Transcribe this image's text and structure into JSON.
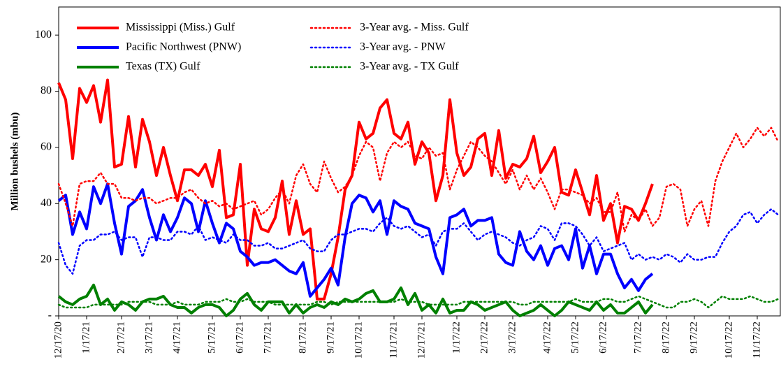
{
  "chart_data": {
    "type": "line",
    "y_label": "Million bushels (mbu)",
    "categories": [
      "12/17/20",
      null,
      null,
      null,
      "1/17/21",
      null,
      null,
      null,
      null,
      "2/17/21",
      null,
      null,
      null,
      "3/17/21",
      null,
      null,
      null,
      "4/17/21",
      null,
      null,
      null,
      null,
      "5/17/21",
      null,
      null,
      null,
      "6/17/21",
      null,
      null,
      null,
      "7/17/21",
      null,
      null,
      null,
      null,
      "8/17/21",
      null,
      null,
      null,
      "9/17/21",
      null,
      null,
      null,
      "10/17/21",
      null,
      null,
      null,
      null,
      "11/17/21",
      null,
      null,
      null,
      "12/17/21",
      null,
      null,
      null,
      null,
      "1/17/22",
      null,
      null,
      null,
      "2/17/22",
      null,
      null,
      null,
      "3/17/22",
      null,
      null,
      null,
      null,
      "4/17/22",
      null,
      null,
      null,
      "5/17/22",
      null,
      null,
      null,
      "6/17/22",
      null,
      null,
      null,
      null,
      "7/17/22",
      null,
      null,
      null,
      "8/17/22",
      null,
      null,
      null,
      "9/17/22",
      null,
      null,
      null,
      null,
      "10/17/22",
      null,
      null,
      null,
      "11/17/22",
      null,
      null,
      null
    ],
    "series": [
      {
        "name": "Mississippi (Miss.) Gulf",
        "color": "#ff0000",
        "style": "solid",
        "values": [
          83,
          77,
          56,
          81,
          76,
          82,
          69,
          84,
          53,
          54,
          71,
          53,
          70,
          62,
          50,
          60,
          50,
          41,
          52,
          52,
          50,
          54,
          46,
          59,
          35,
          36,
          54,
          18,
          38,
          31,
          30,
          35,
          48,
          29,
          41,
          29,
          31,
          6,
          6,
          15,
          28,
          45,
          50,
          69,
          63,
          65,
          74,
          77,
          65,
          63,
          69,
          54,
          62,
          58,
          41,
          50,
          77,
          58,
          50,
          53,
          63,
          65,
          50,
          66,
          49,
          54,
          53,
          56,
          64,
          51,
          55,
          60,
          44,
          43,
          52,
          44,
          36,
          50,
          34,
          40,
          26,
          39,
          38,
          34,
          40,
          47,
          null,
          null,
          null,
          null,
          null,
          null,
          null,
          null,
          null,
          null,
          null,
          null,
          null,
          null,
          null,
          null,
          null,
          null
        ]
      },
      {
        "name": "Pacific Northwest (PNW)",
        "color": "#0000ff",
        "style": "solid",
        "values": [
          41,
          43,
          29,
          37,
          31,
          46,
          40,
          47,
          33,
          22,
          39,
          41,
          45,
          35,
          27,
          36,
          30,
          35,
          42,
          40,
          30,
          41,
          33,
          26,
          33,
          31,
          23,
          21,
          18,
          19,
          19,
          20,
          18,
          16,
          15,
          19,
          7,
          10,
          13,
          17,
          11,
          28,
          40,
          43,
          42,
          37,
          41,
          29,
          41,
          39,
          38,
          33,
          32,
          31,
          21,
          15,
          35,
          36,
          38,
          32,
          34,
          34,
          35,
          22,
          19,
          18,
          30,
          23,
          20,
          25,
          18,
          24,
          25,
          20,
          31,
          17,
          25,
          15,
          22,
          22,
          15,
          10,
          13,
          9,
          13,
          15,
          null,
          null,
          null,
          null,
          null,
          null,
          null,
          null,
          null,
          null,
          null,
          null,
          null,
          null,
          null,
          null,
          null,
          null
        ]
      },
      {
        "name": "Texas (TX) Gulf",
        "color": "#008000",
        "style": "solid",
        "values": [
          7,
          5,
          4,
          6,
          7,
          11,
          4,
          6,
          2,
          5,
          4,
          2,
          5,
          6,
          6,
          7,
          4,
          3,
          3,
          1,
          3,
          4,
          4,
          3,
          0,
          2,
          6,
          8,
          4,
          2,
          5,
          5,
          5,
          1,
          4,
          1,
          3,
          4,
          3,
          5,
          4,
          6,
          5,
          6,
          8,
          9,
          5,
          5,
          6,
          10,
          4,
          8,
          2,
          4,
          1,
          6,
          1,
          2,
          2,
          5,
          4,
          2,
          3,
          4,
          5,
          2,
          0,
          1,
          2,
          4,
          2,
          0,
          2,
          5,
          4,
          3,
          2,
          5,
          2,
          4,
          1,
          1,
          3,
          5,
          1,
          4,
          null,
          null,
          null,
          null,
          null,
          null,
          null,
          null,
          null,
          null,
          null,
          null,
          null,
          null,
          null,
          null,
          null,
          null
        ]
      },
      {
        "name": "3-Year avg. - Miss. Gulf",
        "color": "#ff0000",
        "style": "dotted",
        "values": [
          47,
          40,
          32,
          47,
          48,
          48,
          51,
          47,
          47,
          42,
          42,
          41,
          42,
          42,
          40,
          41,
          42,
          42,
          44,
          45,
          42,
          40,
          41,
          39,
          40,
          38,
          39,
          40,
          41,
          36,
          38,
          42,
          45,
          40,
          50,
          54,
          47,
          44,
          55,
          49,
          44,
          46,
          50,
          57,
          62,
          60,
          48,
          58,
          62,
          60,
          62,
          57,
          56,
          60,
          57,
          58,
          45,
          52,
          57,
          62,
          60,
          57,
          55,
          51,
          47,
          52,
          45,
          50,
          45,
          49,
          44,
          38,
          45,
          45,
          44,
          43,
          40,
          42,
          37,
          37,
          44,
          30,
          36,
          34,
          38,
          32,
          35,
          46,
          47,
          45,
          32,
          38,
          41,
          32,
          48,
          55,
          60,
          65,
          60,
          63,
          67,
          64,
          67,
          62
        ]
      },
      {
        "name": "3-Year avg. - PNW",
        "color": "#0000ff",
        "style": "dotted",
        "values": [
          26,
          18,
          15,
          25,
          27,
          27,
          29,
          29,
          30,
          27,
          28,
          28,
          21,
          28,
          28,
          27,
          27,
          30,
          30,
          29,
          32,
          27,
          28,
          27,
          26,
          29,
          27,
          27,
          25,
          25,
          26,
          24,
          24,
          25,
          26,
          27,
          24,
          23,
          23,
          27,
          29,
          29,
          30,
          31,
          31,
          30,
          33,
          35,
          32,
          31,
          32,
          30,
          28,
          29,
          25,
          30,
          31,
          31,
          33,
          30,
          27,
          29,
          30,
          29,
          28,
          26,
          25,
          27,
          28,
          32,
          31,
          27,
          33,
          33,
          32,
          29,
          25,
          28,
          23,
          24,
          25,
          26,
          20,
          22,
          20,
          21,
          20,
          22,
          21,
          19,
          22,
          20,
          20,
          21,
          21,
          26,
          30,
          32,
          36,
          37,
          33,
          36,
          38,
          36
        ]
      },
      {
        "name": "3-Year avg. - TX Gulf",
        "color": "#008000",
        "style": "dotted",
        "values": [
          4,
          3,
          3,
          3,
          3,
          4,
          4,
          4,
          4,
          4,
          5,
          5,
          5,
          5,
          4,
          4,
          4,
          5,
          4,
          4,
          4,
          5,
          5,
          5,
          6,
          5,
          5,
          6,
          5,
          5,
          5,
          4,
          4,
          4,
          4,
          4,
          4,
          5,
          5,
          4,
          5,
          5,
          5,
          5,
          5,
          5,
          5,
          5,
          5,
          6,
          5,
          5,
          5,
          4,
          4,
          4,
          4,
          4,
          5,
          5,
          5,
          5,
          5,
          5,
          5,
          5,
          4,
          4,
          5,
          5,
          5,
          5,
          5,
          5,
          6,
          5,
          5,
          5,
          6,
          6,
          5,
          5,
          6,
          7,
          6,
          5,
          4,
          3,
          3,
          5,
          5,
          6,
          5,
          3,
          5,
          7,
          6,
          6,
          6,
          7,
          6,
          5,
          5,
          6
        ]
      }
    ],
    "ylim": [
      0,
      110
    ],
    "yticks": [
      {
        "value": 0,
        "label": "-"
      },
      20,
      40,
      60,
      80,
      100
    ],
    "grid": false,
    "legend": "top-left"
  }
}
